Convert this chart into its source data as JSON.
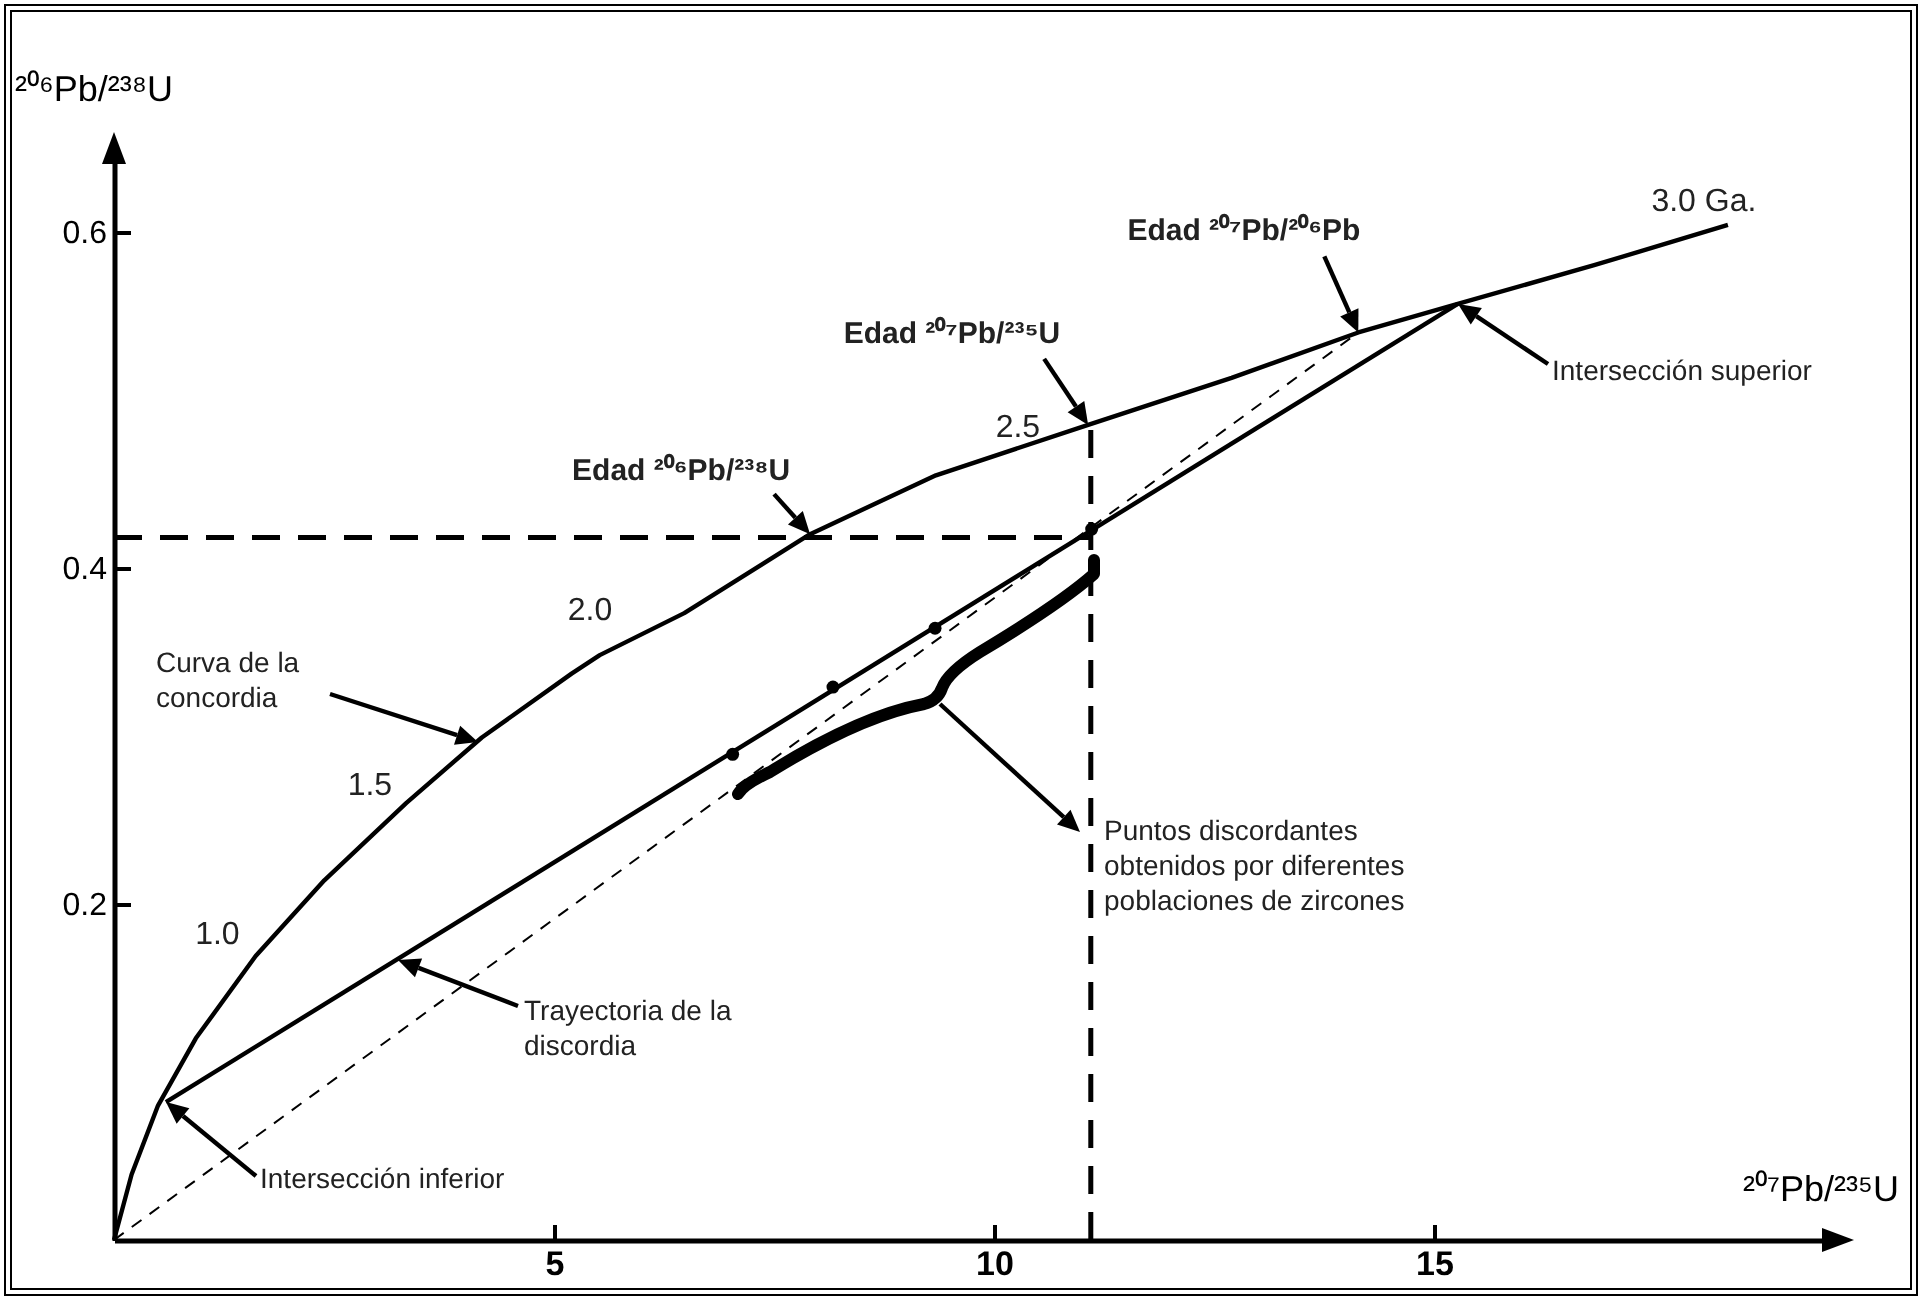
{
  "chart_data": {
    "type": "line",
    "xlabel": "²⁰⁷Pb/²³⁵U",
    "ylabel": "²⁰⁶Pb/²³⁸U",
    "xlim": [
      0,
      19.5
    ],
    "ylim": [
      0,
      0.645
    ],
    "xticks": [
      5,
      10,
      15
    ],
    "yticks": [
      0.2,
      0.4,
      0.6
    ],
    "series": [
      {
        "color": "#000000",
        "line_style": "solid",
        "x": [
          0,
          0.2,
          0.5,
          0.93,
          1.61,
          2.39,
          3.32,
          4.18,
          5.2,
          5.52,
          6.48,
          7.91,
          9.34,
          11.07,
          12.7,
          14.14,
          15.27,
          16.82,
          18.34
        ],
        "values": [
          0,
          0.039,
          0.08,
          0.12,
          0.169,
          0.214,
          0.26,
          0.299,
          0.337,
          0.348,
          0.373,
          0.42,
          0.455,
          0.485,
          0.513,
          0.54,
          0.557,
          0.58,
          0.604
        ]
      },
      {
        "color": "#000000",
        "line_style": "solid",
        "x": [
          0.59,
          15.27
        ],
        "values": [
          0.082,
          0.557
        ]
      },
      {
        "color": "#000000",
        "line_style": "dashed",
        "x": [
          0,
          14.14
        ],
        "values": [
          0,
          0.54
        ]
      },
      {
        "type": "scatter",
        "color": "#000000",
        "marker": "circle",
        "x": [
          7.03,
          8.17,
          9.33,
          11.11
        ],
        "values": [
          0.289,
          0.329,
          0.364,
          0.423
        ]
      },
      {
        "color": "#000000",
        "line_style": "dashed",
        "x": [
          0,
          11.1
        ],
        "values": [
          0.418,
          0.418
        ]
      },
      {
        "color": "#000000",
        "line_style": "dashed",
        "x": [
          11.1,
          11.1
        ],
        "values": [
          0,
          0.485
        ]
      }
    ],
    "annotations": [
      {
        "text": "Edad ²⁰⁶Pb/²³⁸U",
        "x": 7.91,
        "y": 0.42
      },
      {
        "text": "Edad ²⁰⁷Pb/²³⁵U",
        "x": 11.07,
        "y": 0.485
      },
      {
        "text": "Edad ²⁰⁷Pb/²⁰⁶Pb",
        "x": 14.14,
        "y": 0.54
      },
      "Intersección superior",
      "Curva de la concordia",
      "Trayectoria de la discordia",
      "Puntos discordantes obtenidos por diferentes poblaciones de zircones",
      "Intersección inferior",
      {
        "text": "1.0",
        "x": 1.61,
        "y": 0.169
      },
      {
        "text": "1.5",
        "x": 3.32,
        "y": 0.26
      },
      {
        "text": "2.0",
        "x": 5.89,
        "y": 0.362
      },
      {
        "text": "2.5",
        "x": 11.07,
        "y": 0.485
      },
      {
        "text": "3.0 Ga.",
        "x": 18.34,
        "y": 0.604
      }
    ]
  }
}
